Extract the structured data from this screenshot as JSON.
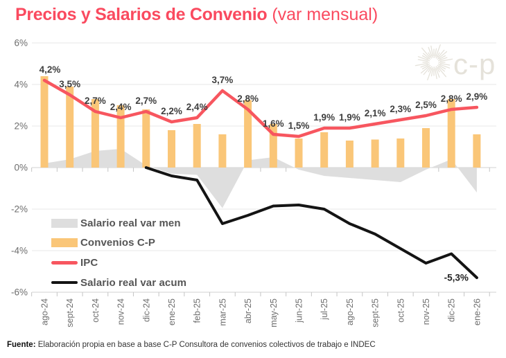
{
  "title": {
    "main": "Precios y Salarios de Convenio",
    "suffix": " (var mensual)"
  },
  "watermark": {
    "label": "c-p"
  },
  "footer": {
    "bold": "Fuente:",
    "text": " Elaboración propia en base a base C-P Consultora de convenios colectivos de trabajo e INDEC"
  },
  "colors": {
    "title": "#FA4A5F",
    "bar": "#FAC678",
    "ipc_line": "#F7565F",
    "acum_line": "#141414",
    "area": "#DEDEDE",
    "grid": "#E7E7E7",
    "axis_text": "#6E6E6E",
    "data_label": "#3E3E3E",
    "watermark": "#E5E2DA"
  },
  "chart_data": {
    "type": "combo (bar + area + two lines)",
    "title": "Precios y Salarios de Convenio (var mensual)",
    "categories": [
      "ago-24",
      "sept-24",
      "oct-24",
      "nov-24",
      "dic-24",
      "ene-25",
      "feb-25",
      "mar-25",
      "abr-25",
      "may-25",
      "jun-25",
      "jul-25",
      "ago-25",
      "sept-25",
      "oct-25",
      "nov-25",
      "dic-25",
      "ene-26"
    ],
    "series": [
      {
        "name": "Salario real var men",
        "type": "area",
        "color": "#DEDEDE",
        "values": [
          0.2,
          0.4,
          0.8,
          0.9,
          0.1,
          -0.3,
          -0.35,
          -1.95,
          0.35,
          0.5,
          -0.1,
          -0.4,
          -0.5,
          -0.6,
          -0.7,
          -0.1,
          0.4,
          -1.2
        ]
      },
      {
        "name": "Convenios C-P",
        "type": "bar",
        "color": "#FAC678",
        "values": [
          4.4,
          3.9,
          3.3,
          3.0,
          2.8,
          1.8,
          2.1,
          1.6,
          3.25,
          2.1,
          1.4,
          1.7,
          1.3,
          1.35,
          1.4,
          1.9,
          3.3,
          1.6
        ]
      },
      {
        "name": "IPC",
        "type": "line",
        "color": "#F7565F",
        "values": [
          4.2,
          3.5,
          2.7,
          2.4,
          2.7,
          2.2,
          2.4,
          3.7,
          2.8,
          1.6,
          1.5,
          1.9,
          1.9,
          2.1,
          2.3,
          2.5,
          2.8,
          2.9
        ],
        "point_labels": [
          "4,2%",
          "3,5%",
          "2,7%",
          "2,4%",
          "2,7%",
          "2,2%",
          "2,4%",
          "3,7%",
          "2,8%",
          "1,6%",
          "1,5%",
          "1,9%",
          "1,9%",
          "2,1%",
          "2,3%",
          "2,5%",
          "2,8%",
          "2,9%"
        ]
      },
      {
        "name": "Salario real var acum",
        "type": "line",
        "color": "#141414",
        "values": [
          null,
          null,
          null,
          null,
          0,
          -0.4,
          -0.6,
          -2.7,
          -2.3,
          -1.85,
          -1.8,
          -2.0,
          -2.7,
          -3.2,
          -3.9,
          -4.6,
          -4.15,
          -5.3
        ],
        "end_label": "-5,3%"
      }
    ],
    "y_axis": {
      "tick_labels": [
        "6%",
        "4%",
        "2%",
        "0%",
        "-2%",
        "-4%",
        "-6%"
      ],
      "tick_values": [
        6,
        4,
        2,
        0,
        -2,
        -4,
        -6
      ]
    },
    "ylim": [
      -6,
      6
    ],
    "grid": true,
    "legend_position": "inside-bottom-left"
  }
}
